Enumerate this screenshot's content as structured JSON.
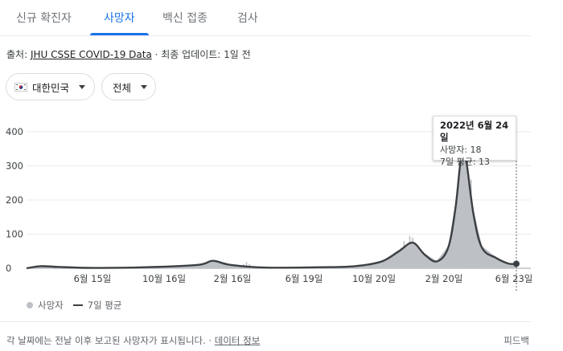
{
  "tabs": [
    {
      "label": "신규 확진자"
    },
    {
      "label": "사망자"
    },
    {
      "label": "백신 접종"
    },
    {
      "label": "검사"
    }
  ],
  "source": {
    "prefix": "출처: ",
    "link": "JHU CSSE COVID-19 Data",
    "suffix": " · 최종 업데이트: 1일 전"
  },
  "filters": {
    "region": "대한민국",
    "range": "전체"
  },
  "tooltip": {
    "date": "2022년 6월 24일",
    "deaths": "사망자: 18",
    "avg": "7일 평균: 13"
  },
  "legend": {
    "deaths": "사망자",
    "avg": "7일 평균"
  },
  "footer": {
    "text": "각 날짜에는 전날 이후 보고된 사망자가 표시됩니다. · ",
    "link": "데이터 정보",
    "feedback": "피드백"
  },
  "colors": {
    "accent": "#1a73e8",
    "bars": "#bdc1c6",
    "avg_line": "#3c4043"
  },
  "chart_data": {
    "type": "area",
    "title": "",
    "xlabel": "",
    "ylabel": "",
    "ylim": [
      0,
      450
    ],
    "yticks": [
      0,
      100,
      200,
      300,
      400
    ],
    "xtick_labels": [
      "6월 15일",
      "10월 16일",
      "2월 16일",
      "6월 19일",
      "10월 20일",
      "2월 20일",
      "6월 23일"
    ],
    "grid": true,
    "legend_position": "bottom-left",
    "series": [
      {
        "name": "7일 평균",
        "points": [
          [
            "2020-02-20",
            0
          ],
          [
            "2020-03-15",
            6
          ],
          [
            "2020-04-15",
            4
          ],
          [
            "2020-06-15",
            1
          ],
          [
            "2020-09-15",
            3
          ],
          [
            "2020-12-15",
            10
          ],
          [
            "2021-01-10",
            22
          ],
          [
            "2021-02-10",
            10
          ],
          [
            "2021-04-15",
            2
          ],
          [
            "2021-07-15",
            3
          ],
          [
            "2021-09-15",
            6
          ],
          [
            "2021-11-01",
            20
          ],
          [
            "2021-12-01",
            50
          ],
          [
            "2021-12-25",
            75
          ],
          [
            "2022-01-15",
            40
          ],
          [
            "2022-02-05",
            20
          ],
          [
            "2022-02-25",
            60
          ],
          [
            "2022-03-10",
            180
          ],
          [
            "2022-03-20",
            330
          ],
          [
            "2022-03-28",
            320
          ],
          [
            "2022-04-10",
            160
          ],
          [
            "2022-04-25",
            60
          ],
          [
            "2022-05-20",
            30
          ],
          [
            "2022-06-10",
            14
          ],
          [
            "2022-06-24",
            13
          ]
        ]
      },
      {
        "name": "사망자",
        "points": [
          [
            "2021-03-05",
            12
          ],
          [
            "2021-03-10",
            18
          ],
          [
            "2021-03-15",
            12
          ],
          [
            "2021-12-05",
            60
          ],
          [
            "2021-12-10",
            80
          ],
          [
            "2021-12-15",
            70
          ],
          [
            "2021-12-20",
            95
          ],
          [
            "2021-12-25",
            90
          ],
          [
            "2021-12-30",
            60
          ],
          [
            "2022-01-05",
            50
          ],
          [
            "2022-03-15",
            200
          ],
          [
            "2022-03-18",
            300
          ],
          [
            "2022-03-22",
            420
          ],
          [
            "2022-03-24",
            340
          ],
          [
            "2022-03-26",
            430
          ],
          [
            "2022-03-30",
            300
          ],
          [
            "2022-04-03",
            240
          ],
          [
            "2022-04-06",
            260
          ],
          [
            "2022-04-10",
            150
          ]
        ]
      }
    ],
    "highlight": {
      "date": "2022-06-24",
      "value": 13
    }
  }
}
